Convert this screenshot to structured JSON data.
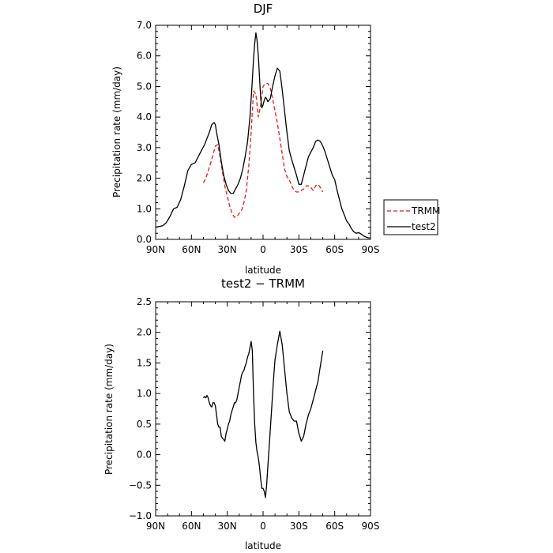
{
  "chart_data": [
    {
      "type": "line",
      "title": "DJF",
      "xlabel": "latitude",
      "ylabel": "Precipitation rate (mm/day)",
      "xlim": [
        -90,
        90
      ],
      "ylim": [
        0,
        7
      ],
      "x_ticks": [
        -90,
        -60,
        -30,
        0,
        30,
        60,
        90
      ],
      "x_tick_labels": [
        "90N",
        "60N",
        "30N",
        "0",
        "30S",
        "60S",
        "90S"
      ],
      "y_ticks": [
        0,
        1,
        2,
        3,
        4,
        5,
        6,
        7
      ],
      "y_tick_labels": [
        "0.0",
        "1.0",
        "2.0",
        "3.0",
        "4.0",
        "5.0",
        "6.0",
        "7.0"
      ],
      "legend_position": "right",
      "series": [
        {
          "name": "TRMM",
          "color": "#e41a1c",
          "dash": true,
          "x": [
            -50,
            -48,
            -45,
            -42,
            -40,
            -38,
            -36,
            -34,
            -32,
            -30,
            -28,
            -26,
            -24,
            -22,
            -20,
            -18,
            -16,
            -14,
            -12,
            -10,
            -8,
            -6,
            -4,
            -2,
            0,
            2,
            4,
            6,
            8,
            10,
            12,
            14,
            16,
            18,
            20,
            22,
            24,
            26,
            28,
            30,
            32,
            34,
            36,
            38,
            40,
            42,
            44,
            46,
            48,
            50
          ],
          "y": [
            1.85,
            2.0,
            2.35,
            2.75,
            3.05,
            3.1,
            2.7,
            2.2,
            1.75,
            1.4,
            1.1,
            0.85,
            0.72,
            0.75,
            0.85,
            0.95,
            1.2,
            1.6,
            2.4,
            3.5,
            4.85,
            4.75,
            4.0,
            4.4,
            5.0,
            5.1,
            5.1,
            4.95,
            4.6,
            4.2,
            3.8,
            3.3,
            2.8,
            2.3,
            2.05,
            1.95,
            1.75,
            1.6,
            1.55,
            1.55,
            1.6,
            1.65,
            1.75,
            1.75,
            1.7,
            1.6,
            1.75,
            1.8,
            1.7,
            1.55
          ]
        },
        {
          "name": "test2",
          "color": "#000000",
          "dash": false,
          "x": [
            -90,
            -87,
            -84,
            -81,
            -78,
            -75,
            -72,
            -69,
            -66,
            -63,
            -60,
            -57,
            -55,
            -53,
            -51,
            -49,
            -47,
            -45,
            -43,
            -41,
            -40,
            -39,
            -37,
            -35,
            -33,
            -31,
            -29,
            -27,
            -25,
            -23,
            -21,
            -19,
            -17,
            -15,
            -13,
            -11,
            -9,
            -8,
            -7,
            -6,
            -5,
            -4,
            -3,
            -2,
            -1,
            0,
            1,
            2,
            3,
            4,
            6,
            8,
            10,
            12,
            14,
            16,
            18,
            20,
            22,
            24,
            26,
            28,
            30,
            32,
            34,
            36,
            38,
            40,
            42,
            44,
            46,
            48,
            50,
            52,
            54,
            56,
            58,
            60,
            62,
            64,
            66,
            68,
            70,
            72,
            74,
            76,
            78,
            80,
            82,
            84,
            86,
            88,
            90
          ],
          "y": [
            0.4,
            0.42,
            0.45,
            0.55,
            0.75,
            1.0,
            1.05,
            1.3,
            1.75,
            2.25,
            2.45,
            2.5,
            2.65,
            2.8,
            2.95,
            3.1,
            3.3,
            3.5,
            3.75,
            3.82,
            3.75,
            3.5,
            3.1,
            2.55,
            2.1,
            1.8,
            1.6,
            1.5,
            1.5,
            1.65,
            1.8,
            2.0,
            2.3,
            2.7,
            3.2,
            4.0,
            5.2,
            5.9,
            6.4,
            6.75,
            6.5,
            6.0,
            5.3,
            4.6,
            4.3,
            4.4,
            4.55,
            4.65,
            4.6,
            4.5,
            4.6,
            5.0,
            5.35,
            5.6,
            5.5,
            4.9,
            4.2,
            3.5,
            2.9,
            2.6,
            2.35,
            2.1,
            1.8,
            1.8,
            2.1,
            2.4,
            2.7,
            2.85,
            3.0,
            3.2,
            3.25,
            3.2,
            3.05,
            2.85,
            2.6,
            2.35,
            2.1,
            1.95,
            1.6,
            1.3,
            1.0,
            0.8,
            0.6,
            0.5,
            0.35,
            0.25,
            0.2,
            0.22,
            0.18,
            0.12,
            0.08,
            0.05,
            0.05
          ]
        }
      ]
    },
    {
      "type": "line",
      "title": "test2 − TRMM",
      "xlabel": "latitude",
      "ylabel": "Precipitation rate (mm/day)",
      "xlim": [
        -90,
        90
      ],
      "ylim": [
        -1,
        2.5
      ],
      "x_ticks": [
        -90,
        -60,
        -30,
        0,
        30,
        60,
        90
      ],
      "x_tick_labels": [
        "90N",
        "60N",
        "30N",
        "0",
        "30S",
        "60S",
        "90S"
      ],
      "y_ticks": [
        -1,
        -0.5,
        0,
        0.5,
        1,
        1.5,
        2,
        2.5
      ],
      "y_tick_labels": [
        "−1.0",
        "−0.5",
        "0.0",
        "0.5",
        "1.0",
        "1.5",
        "2.0",
        "2.5"
      ],
      "series": [
        {
          "color": "#000000",
          "dash": false,
          "x": [
            -50,
            -49,
            -48,
            -47,
            -46,
            -45,
            -44,
            -43,
            -42,
            -41,
            -40,
            -39,
            -38,
            -37,
            -36,
            -35,
            -34,
            -33,
            -32,
            -31,
            -30,
            -29,
            -28,
            -27,
            -26,
            -25,
            -24,
            -23,
            -22,
            -21,
            -20,
            -19,
            -18,
            -17,
            -16,
            -15,
            -14,
            -13,
            -12,
            -11,
            -10,
            -9,
            -8,
            -7,
            -6,
            -5,
            -4,
            -3,
            -2,
            -1,
            0,
            1,
            2,
            3,
            4,
            5,
            6,
            7,
            8,
            9,
            10,
            12,
            14,
            16,
            18,
            20,
            22,
            24,
            26,
            28,
            30,
            32,
            34,
            36,
            38,
            40,
            42,
            44,
            46,
            48,
            50
          ],
          "y": [
            0.93,
            0.95,
            0.93,
            0.97,
            0.93,
            0.85,
            0.8,
            0.78,
            0.85,
            0.85,
            0.8,
            0.65,
            0.5,
            0.45,
            0.45,
            0.3,
            0.27,
            0.25,
            0.22,
            0.35,
            0.42,
            0.5,
            0.55,
            0.65,
            0.72,
            0.78,
            0.85,
            0.85,
            0.9,
            1.0,
            1.1,
            1.2,
            1.3,
            1.35,
            1.38,
            1.45,
            1.5,
            1.6,
            1.65,
            1.75,
            1.85,
            1.7,
            1.0,
            0.5,
            0.2,
            0.05,
            -0.05,
            -0.2,
            -0.4,
            -0.55,
            -0.55,
            -0.6,
            -0.7,
            -0.5,
            -0.2,
            0.1,
            0.4,
            0.7,
            1.0,
            1.3,
            1.55,
            1.8,
            2.02,
            1.8,
            1.4,
            1.0,
            0.7,
            0.6,
            0.55,
            0.55,
            0.35,
            0.22,
            0.3,
            0.5,
            0.65,
            0.75,
            0.9,
            1.05,
            1.2,
            1.45,
            1.7
          ]
        }
      ]
    }
  ]
}
